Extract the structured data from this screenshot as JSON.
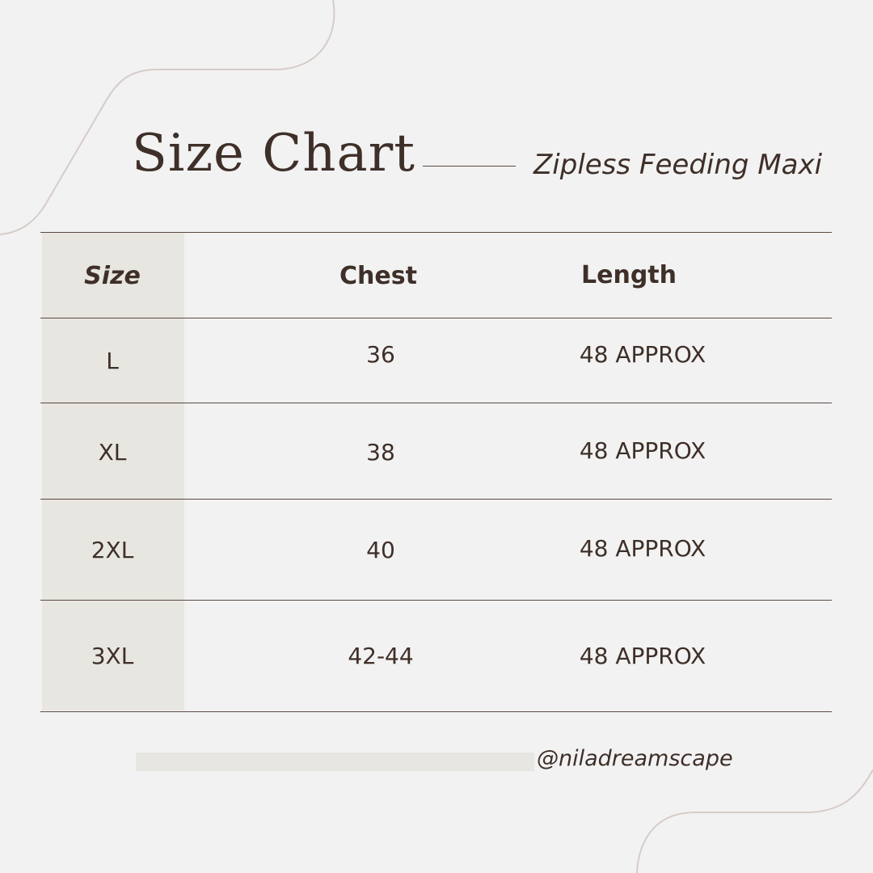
{
  "title": "Size Chart",
  "subtitle": "Zipless Feeding Maxi",
  "table": {
    "headers": [
      "Size",
      "Chest",
      "Length"
    ],
    "rows": [
      [
        "L",
        "36",
        "48 APPROX"
      ],
      [
        "XL",
        "38",
        "48 APPROX"
      ],
      [
        "2XL",
        "40",
        "48 APPROX"
      ],
      [
        "3XL",
        "42-44",
        "48 APPROX"
      ]
    ]
  },
  "handle": "@niladreamscape",
  "colors": {
    "background": "#f2f2f2",
    "text": "#3e2f28",
    "shade": "#e8e6e1",
    "rule": "#5a4a42",
    "decoration": "#d6ccc8"
  }
}
